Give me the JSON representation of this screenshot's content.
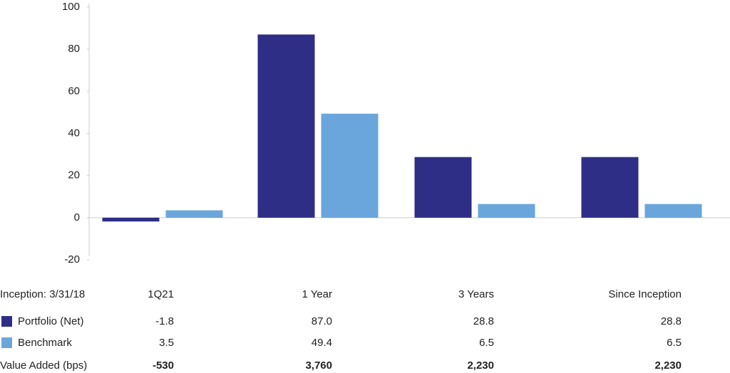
{
  "chart_data": {
    "type": "bar",
    "categories": [
      "1Q21",
      "1 Year",
      "3 Years",
      "Since Inception"
    ],
    "series": [
      {
        "name": "Portfolio (Net)",
        "color": "#2e2e87",
        "values": [
          -1.8,
          87.0,
          28.8,
          28.8
        ],
        "value_labels": [
          "-1.8",
          "87.0",
          "28.8",
          "28.8"
        ]
      },
      {
        "name": "Benchmark",
        "color": "#6aa6dc",
        "values": [
          3.5,
          49.4,
          6.5,
          6.5
        ],
        "value_labels": [
          "3.5",
          "49.4",
          "6.5",
          "6.5"
        ]
      }
    ],
    "ylim": [
      -20,
      100
    ],
    "yticks": [
      -20,
      0,
      20,
      40,
      60,
      80,
      100
    ],
    "table_header": "Inception: 3/31/18",
    "value_added": {
      "name": "Value Added (bps)",
      "values": [
        -530,
        3760,
        2230,
        2230
      ],
      "value_labels": [
        "-530",
        "3,760",
        "2,230",
        "2,230"
      ]
    }
  }
}
